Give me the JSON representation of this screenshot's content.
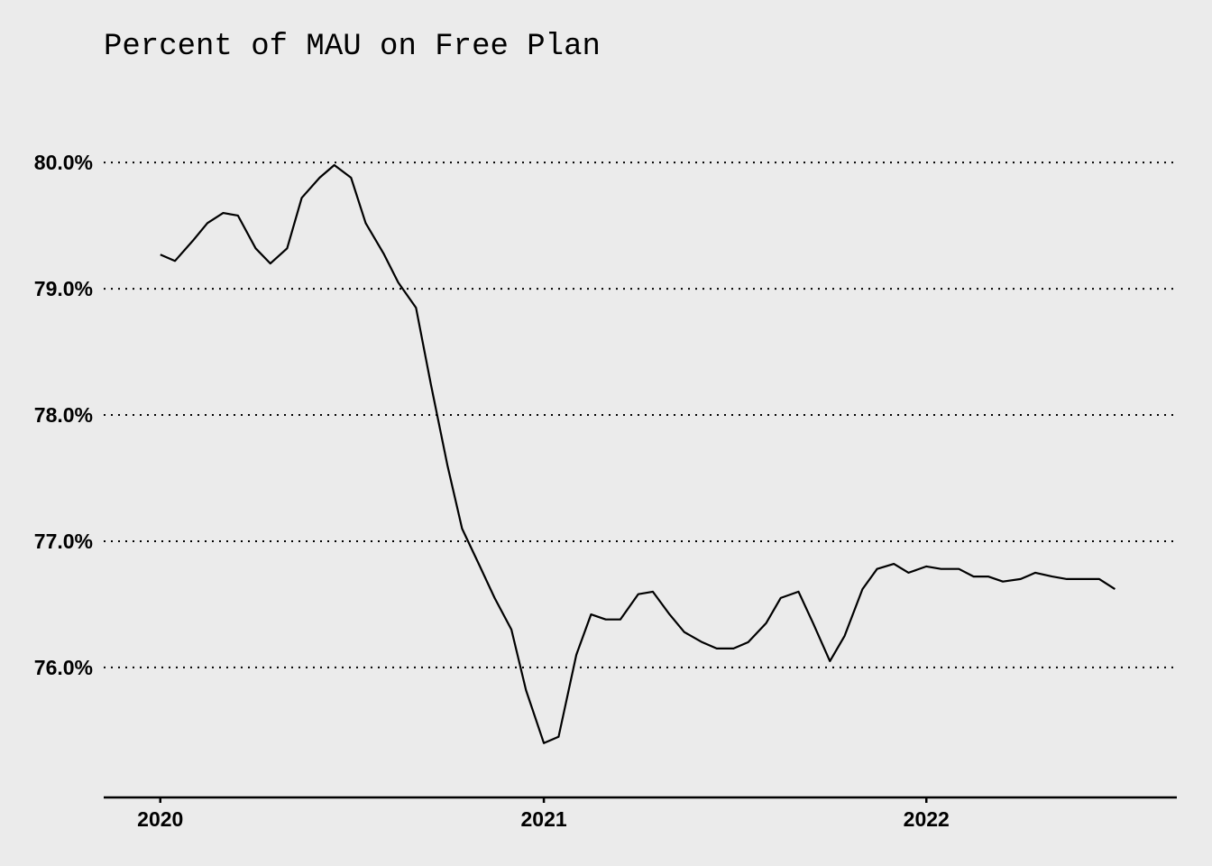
{
  "chart_data": {
    "type": "line",
    "title": "Percent of MAU on Free Plan",
    "xlabel": "",
    "ylabel": "",
    "y_ticks": [
      {
        "value": 80.0,
        "label": "80.0%"
      },
      {
        "value": 79.0,
        "label": "79.0%"
      },
      {
        "value": 78.0,
        "label": "78.0%"
      },
      {
        "value": 77.0,
        "label": "77.0%"
      },
      {
        "value": 76.0,
        "label": "76.0%"
      }
    ],
    "x_ticks": [
      {
        "value": "2020-01-01",
        "label": "2020"
      },
      {
        "value": "2021-01-01",
        "label": "2021"
      },
      {
        "value": "2022-01-01",
        "label": "2022"
      }
    ],
    "xlim": [
      "2019-11-08",
      "2022-08-28"
    ],
    "ylim": [
      75.07,
      80.43
    ],
    "grid": "horizontal dotted",
    "legend": "none",
    "series": [
      {
        "x": [
          "2020-01-01",
          "2020-01-15",
          "2020-02-01",
          "2020-02-15",
          "2020-03-01",
          "2020-03-15",
          "2020-04-01",
          "2020-04-15",
          "2020-05-01",
          "2020-05-15",
          "2020-06-01",
          "2020-06-15",
          "2020-07-01",
          "2020-07-15",
          "2020-08-01",
          "2020-08-15",
          "2020-09-01",
          "2020-09-15",
          "2020-10-01",
          "2020-10-15",
          "2020-11-01",
          "2020-11-15",
          "2020-12-01",
          "2020-12-15",
          "2021-01-01",
          "2021-01-15",
          "2021-02-01",
          "2021-02-15",
          "2021-03-01",
          "2021-03-15",
          "2021-04-01",
          "2021-04-15",
          "2021-05-01",
          "2021-05-15",
          "2021-06-01",
          "2021-06-15",
          "2021-07-01",
          "2021-07-15",
          "2021-08-01",
          "2021-08-15",
          "2021-09-01",
          "2021-09-15",
          "2021-10-01",
          "2021-10-15",
          "2021-11-01",
          "2021-11-15",
          "2021-12-01",
          "2021-12-15",
          "2022-01-01",
          "2022-01-15",
          "2022-02-01",
          "2022-02-15",
          "2022-03-01",
          "2022-03-15",
          "2022-04-01",
          "2022-04-15",
          "2022-05-01",
          "2022-05-15",
          "2022-06-01",
          "2022-06-15",
          "2022-06-30"
        ],
        "values": [
          79.27,
          79.22,
          79.38,
          79.52,
          79.6,
          79.58,
          79.32,
          79.2,
          79.32,
          79.72,
          79.88,
          79.98,
          79.88,
          79.52,
          79.28,
          79.05,
          78.85,
          78.25,
          77.6,
          77.1,
          76.8,
          76.55,
          76.3,
          75.82,
          75.4,
          75.45,
          76.1,
          76.42,
          76.38,
          76.38,
          76.58,
          76.6,
          76.42,
          76.28,
          76.2,
          76.15,
          76.15,
          76.2,
          76.35,
          76.55,
          76.6,
          76.35,
          76.05,
          76.25,
          76.62,
          76.78,
          76.82,
          76.75,
          76.8,
          76.78,
          76.78,
          76.72,
          76.72,
          76.68,
          76.7,
          76.75,
          76.72,
          76.7,
          76.7,
          76.7,
          76.62
        ]
      }
    ]
  }
}
